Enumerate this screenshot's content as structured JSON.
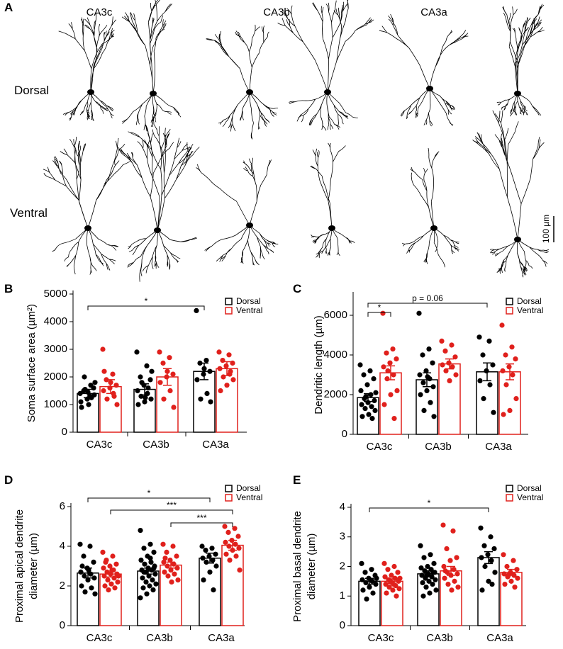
{
  "panel_a": {
    "letter": "A",
    "columns": [
      "CA3c",
      "CA3b",
      "CA3a"
    ],
    "rows": [
      "Dorsal",
      "Ventral"
    ],
    "scale_bar": "100 µm"
  },
  "chart_data": [
    {
      "type": "bar",
      "panel": "B",
      "ylabel": [
        "Soma surface area (µm²)"
      ],
      "categories": [
        "CA3c",
        "CA3b",
        "CA3a"
      ],
      "ylim": [
        0,
        5000
      ],
      "yticks": [
        0,
        1000,
        2000,
        3000,
        4000,
        5000
      ],
      "series": [
        {
          "name": "Dorsal",
          "color": "#000000",
          "values": [
            1400,
            1550,
            2200
          ],
          "errors": [
            150,
            200,
            300
          ],
          "points": [
            [
              1400,
              1300,
              1500,
              1600,
              1200,
              1100,
              1700,
              2000,
              1350,
              1450,
              900,
              1250,
              1550,
              1800,
              1000
            ],
            [
              2900,
              2400,
              2000,
              1900,
              1700,
              1500,
              1400,
              1300,
              1200,
              1100,
              1000,
              1600,
              1800,
              2200,
              1250
            ],
            [
              4400,
              2600,
              2500,
              2200,
              2100,
              1900,
              1400,
              1200,
              1100,
              2300
            ]
          ]
        },
        {
          "name": "Ventral",
          "color": "#e0201c",
          "values": [
            1650,
            2000,
            2300
          ],
          "errors": [
            250,
            300,
            250
          ],
          "points": [
            [
              3000,
              2100,
              1900,
              1700,
              1600,
              1500,
              1400,
              1200,
              1000,
              1800,
              2200,
              1300
            ],
            [
              2900,
              2700,
              2500,
              2100,
              2000,
              1800,
              1500,
              1200,
              900,
              2200
            ],
            [
              2900,
              2800,
              2600,
              2500,
              2400,
              2300,
              2100,
              2000,
              1900,
              1700,
              1500,
              2200
            ]
          ]
        }
      ],
      "annotations": [
        "*"
      ]
    },
    {
      "type": "bar",
      "panel": "C",
      "ylabel": [
        "Dendritic length (µm)"
      ],
      "categories": [
        "CA3c",
        "CA3b",
        "CA3a"
      ],
      "ylim": [
        0,
        7000
      ],
      "yticks": [
        0,
        2000,
        4000,
        6000
      ],
      "series": [
        {
          "name": "Dorsal",
          "color": "#000000",
          "values": [
            1850,
            2750,
            3150
          ],
          "errors": [
            200,
            350,
            450
          ],
          "points": [
            [
              3500,
              3200,
              3000,
              2800,
              2500,
              2200,
              2000,
              1800,
              1700,
              1600,
              1500,
              1400,
              1300,
              1200,
              1000,
              900,
              800,
              1900,
              2100
            ],
            [
              6100,
              4300,
              4000,
              3600,
              3200,
              3000,
              2800,
              2600,
              2400,
              2200,
              2000,
              1600,
              1200,
              900,
              2900
            ],
            [
              4900,
              4700,
              4000,
              3500,
              3200,
              2700,
              2500,
              1800,
              1100
            ]
          ]
        },
        {
          "name": "Ventral",
          "color": "#e0201c",
          "values": [
            3100,
            3550,
            3150
          ],
          "errors": [
            350,
            250,
            400
          ],
          "points": [
            [
              6100,
              4300,
              4100,
              3800,
              3600,
              3400,
              3000,
              2800,
              2200,
              2000,
              1500,
              800,
              3200
            ],
            [
              4700,
              4500,
              4200,
              3900,
              3600,
              3500,
              3400,
              3200,
              3000,
              2700
            ],
            [
              5500,
              4400,
              4000,
              3800,
              3400,
              3200,
              3000,
              2500,
              1800,
              1200,
              1000
            ]
          ]
        }
      ],
      "annotations": [
        "*",
        "p = 0.06"
      ]
    },
    {
      "type": "bar",
      "panel": "D",
      "ylabel": [
        "Proximal apical dendrite",
        "diameter (µm)"
      ],
      "categories": [
        "CA3c",
        "CA3b",
        "CA3a"
      ],
      "ylim": [
        0,
        6
      ],
      "yticks": [
        0,
        2,
        4,
        6
      ],
      "series": [
        {
          "name": "Dorsal",
          "color": "#000000",
          "values": [
            2.65,
            2.75,
            3.4
          ],
          "errors": [
            0.25,
            0.15,
            0.25
          ],
          "points": [
            [
              4.1,
              4.0,
              3.5,
              3.2,
              2.9,
              2.7,
              2.6,
              2.5,
              2.4,
              2.3,
              2.0,
              1.9,
              1.7,
              1.6,
              2.8,
              3.0
            ],
            [
              4.8,
              4.1,
              3.9,
              3.7,
              3.5,
              3.3,
              3.2,
              3.1,
              3.0,
              2.9,
              2.8,
              2.8,
              2.7,
              2.6,
              2.5,
              2.4,
              2.3,
              2.2,
              2.1,
              2.0,
              1.9,
              1.8,
              1.6,
              1.4,
              3.4,
              2.7,
              2.9
            ],
            [
              4.0,
              3.9,
              3.8,
              3.6,
              3.5,
              3.4,
              3.3,
              3.2,
              3.0,
              2.7,
              2.3,
              1.8
            ]
          ]
        },
        {
          "name": "Ventral",
          "color": "#e0201c",
          "values": [
            2.6,
            3.05,
            4.05
          ],
          "errors": [
            0.15,
            0.15,
            0.25
          ],
          "points": [
            [
              3.7,
              3.5,
              3.3,
              3.1,
              3.0,
              2.9,
              2.8,
              2.7,
              2.6,
              2.6,
              2.5,
              2.4,
              2.3,
              2.2,
              2.1,
              2.0,
              1.9,
              1.8,
              2.5,
              2.8,
              3.2
            ],
            [
              4.1,
              4.0,
              3.7,
              3.5,
              3.3,
              3.2,
              3.1,
              3.0,
              2.9,
              2.8,
              2.7,
              2.6,
              2.5,
              2.3,
              2.2,
              3.4
            ],
            [
              5.0,
              4.9,
              4.7,
              4.5,
              4.3,
              4.2,
              4.1,
              4.0,
              3.9,
              3.8,
              3.6,
              3.5,
              3.3,
              2.8
            ]
          ]
        }
      ],
      "annotations": [
        "*",
        "***",
        "***"
      ]
    },
    {
      "type": "bar",
      "panel": "E",
      "ylabel": [
        "Proximal basal dendrite",
        "diameter (µm)"
      ],
      "categories": [
        "CA3c",
        "CA3b",
        "CA3a"
      ],
      "ylim": [
        0,
        4
      ],
      "yticks": [
        0,
        1,
        2,
        3,
        4
      ],
      "series": [
        {
          "name": "Dorsal",
          "color": "#000000",
          "values": [
            1.5,
            1.75,
            2.3
          ],
          "errors": [
            0.1,
            0.1,
            0.2
          ],
          "points": [
            [
              2.1,
              1.9,
              1.8,
              1.7,
              1.6,
              1.55,
              1.5,
              1.45,
              1.4,
              1.3,
              1.2,
              1.1,
              0.9,
              1.6
            ],
            [
              2.7,
              2.4,
              2.3,
              2.1,
              2.0,
              1.95,
              1.9,
              1.85,
              1.8,
              1.75,
              1.7,
              1.65,
              1.6,
              1.55,
              1.5,
              1.45,
              1.4,
              1.3,
              1.2,
              1.1,
              1.0,
              1.8,
              1.7
            ],
            [
              3.3,
              3.0,
              2.7,
              2.6,
              2.4,
              2.3,
              2.2,
              2.0,
              1.8,
              1.5,
              1.2,
              1.4
            ]
          ]
        },
        {
          "name": "Ventral",
          "color": "#e0201c",
          "values": [
            1.5,
            1.85,
            1.8
          ],
          "errors": [
            0.08,
            0.15,
            0.1
          ],
          "points": [
            [
              2.1,
              2.0,
              1.9,
              1.8,
              1.7,
              1.65,
              1.6,
              1.55,
              1.5,
              1.45,
              1.4,
              1.35,
              1.3,
              1.25,
              1.2,
              1.1,
              1.0,
              1.5,
              1.6,
              1.4
            ],
            [
              3.4,
              3.2,
              2.6,
              2.3,
              2.2,
              2.0,
              1.9,
              1.8,
              1.75,
              1.7,
              1.6,
              1.5,
              1.4,
              1.3,
              1.2,
              1.85
            ],
            [
              2.4,
              2.2,
              2.0,
              1.9,
              1.8,
              1.75,
              1.7,
              1.65,
              1.6,
              1.5,
              1.4,
              1.3,
              1.7
            ]
          ]
        }
      ],
      "annotations": [
        "*"
      ]
    }
  ]
}
